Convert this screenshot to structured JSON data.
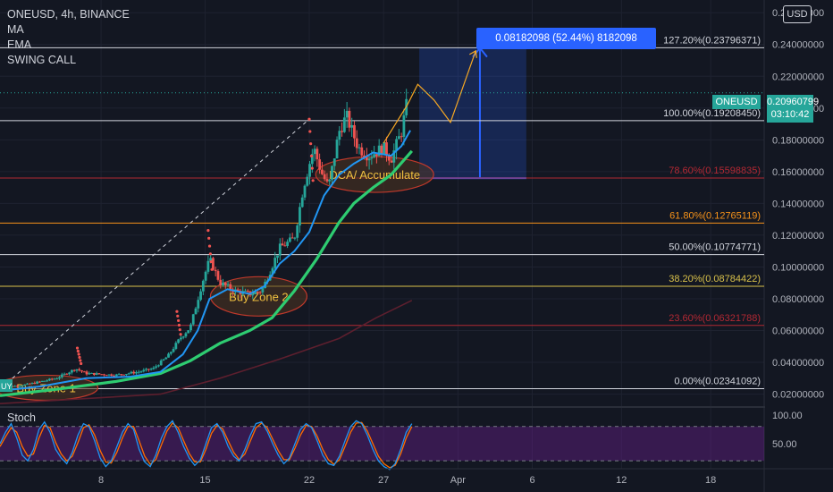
{
  "header": {
    "title": "ONEUSD, 4h, BINANCE",
    "indicators": [
      "MA",
      "EMA",
      "SWING CALL"
    ]
  },
  "currency_button": "USD",
  "current_price": {
    "symbol": "ONEUSD",
    "value": "0.20960799",
    "countdown": "03:10:42"
  },
  "measure_label": "0.08182098 (52.44%) 8182098",
  "stoch_title": "Stoch",
  "annotations": {
    "buy_zone_1": "Buy Zone 1",
    "buy_zone_2": "Buy Zone 2",
    "dca": "DCA/ Accumulate",
    "chart_badge": "UY"
  },
  "colors": {
    "background": "#131722",
    "up": "#26a69a",
    "down": "#ef5350",
    "ema": "#2196f3",
    "ma": "#2ecc71",
    "long_ma": "#5d1f2e",
    "fib_white": "#d1d4dc",
    "fib_red": "#b22833",
    "fib_orange": "#f7931a",
    "fib_yellow": "#d8c04a",
    "measure": "#2962ff",
    "zone_fill": "#3d2a1e",
    "zone_stroke": "#c0392b",
    "stoch_band": "#4a2c7a",
    "stoch_k": "#2196f3",
    "stoch_d": "#ff6d00"
  },
  "chart_data": {
    "type": "candlestick",
    "y_axis": {
      "ticks": [
        "0.26000000",
        "0.24000000",
        "0.22000000",
        "0.20000000",
        "0.18000000",
        "0.16000000",
        "0.14000000",
        "0.12000000",
        "0.10000000",
        "0.08000000",
        "0.06000000",
        "0.04000000",
        "0.02000000"
      ],
      "tick_values": [
        0.26,
        0.24,
        0.22,
        0.2,
        0.18,
        0.16,
        0.14,
        0.12,
        0.1,
        0.08,
        0.06,
        0.04,
        0.02
      ],
      "range": [
        0.013,
        0.268
      ]
    },
    "x_axis": {
      "ticks": [
        "8",
        "15",
        "22",
        "27",
        "Apr",
        "6",
        "12",
        "18"
      ],
      "tick_days": [
        8,
        15,
        22,
        27,
        32,
        37,
        43,
        49
      ],
      "range_days": [
        1.2,
        52.6
      ]
    },
    "fib_levels": [
      {
        "label": "127.20%(0.23796371)",
        "value": 0.23796371,
        "color": "fib_white"
      },
      {
        "label": "100.00%(0.19208450)",
        "value": 0.1920845,
        "color": "fib_white"
      },
      {
        "label": "78.60%(0.15598835)",
        "value": 0.15598835,
        "color": "fib_red"
      },
      {
        "label": "61.80%(0.12765119)",
        "value": 0.12765119,
        "color": "fib_orange"
      },
      {
        "label": "50.00%(0.10774771)",
        "value": 0.10774771,
        "color": "fib_white"
      },
      {
        "label": "38.20%(0.08784422)",
        "value": 0.08784422,
        "color": "fib_yellow"
      },
      {
        "label": "23.60%(0.06321788)",
        "value": 0.06321788,
        "color": "fib_red"
      },
      {
        "label": "0.00%(0.02341092)",
        "value": 0.02341092,
        "color": "fib_white"
      }
    ],
    "price_path": [
      [
        1.2,
        0.024
      ],
      [
        3,
        0.026
      ],
      [
        5,
        0.03
      ],
      [
        6.3,
        0.036
      ],
      [
        7,
        0.033
      ],
      [
        9,
        0.032
      ],
      [
        10.5,
        0.034
      ],
      [
        11.5,
        0.036
      ],
      [
        12.5,
        0.044
      ],
      [
        13.3,
        0.055
      ],
      [
        14,
        0.062
      ],
      [
        14.8,
        0.09
      ],
      [
        15.3,
        0.105
      ],
      [
        16,
        0.09
      ],
      [
        17,
        0.085
      ],
      [
        18,
        0.083
      ],
      [
        18.8,
        0.085
      ],
      [
        19.4,
        0.098
      ],
      [
        20,
        0.112
      ],
      [
        21,
        0.118
      ],
      [
        21.6,
        0.15
      ],
      [
        22.3,
        0.175
      ],
      [
        22.8,
        0.16
      ],
      [
        23.3,
        0.15
      ],
      [
        24,
        0.185
      ],
      [
        24.5,
        0.195
      ],
      [
        25.3,
        0.175
      ],
      [
        26,
        0.17
      ],
      [
        27,
        0.175
      ],
      [
        27.5,
        0.168
      ],
      [
        28.2,
        0.185
      ],
      [
        28.7,
        0.2096
      ]
    ],
    "spikes": [
      [
        6.4,
        0.049
      ],
      [
        13.1,
        0.072
      ],
      [
        15.2,
        0.123
      ],
      [
        22.0,
        0.193
      ]
    ],
    "ema": [
      [
        1.2,
        0.022
      ],
      [
        4,
        0.025
      ],
      [
        7,
        0.03
      ],
      [
        10,
        0.031
      ],
      [
        12,
        0.034
      ],
      [
        13.5,
        0.045
      ],
      [
        14.5,
        0.06
      ],
      [
        15.3,
        0.08
      ],
      [
        16.5,
        0.086
      ],
      [
        18,
        0.083
      ],
      [
        19,
        0.088
      ],
      [
        20,
        0.102
      ],
      [
        21,
        0.11
      ],
      [
        22,
        0.122
      ],
      [
        23,
        0.145
      ],
      [
        24,
        0.158
      ],
      [
        25,
        0.165
      ],
      [
        26.3,
        0.172
      ],
      [
        27.5,
        0.17
      ],
      [
        28.2,
        0.176
      ],
      [
        28.8,
        0.186
      ]
    ],
    "ma": [
      [
        1.2,
        0.019
      ],
      [
        5,
        0.023
      ],
      [
        9,
        0.028
      ],
      [
        12,
        0.033
      ],
      [
        14,
        0.041
      ],
      [
        16,
        0.052
      ],
      [
        18,
        0.06
      ],
      [
        19.5,
        0.068
      ],
      [
        21,
        0.085
      ],
      [
        22.5,
        0.105
      ],
      [
        24,
        0.128
      ],
      [
        25,
        0.14
      ],
      [
        26.3,
        0.15
      ],
      [
        27.5,
        0.158
      ],
      [
        28.9,
        0.173
      ]
    ],
    "long_ma": [
      [
        1.2,
        0.014
      ],
      [
        12,
        0.02
      ],
      [
        16,
        0.03
      ],
      [
        20,
        0.042
      ],
      [
        24,
        0.055
      ],
      [
        26.5,
        0.068
      ],
      [
        28.9,
        0.079
      ]
    ],
    "measure": {
      "start_day": 29.4,
      "end_day": 36.6,
      "low": 0.1559,
      "high": 0.2378
    },
    "projection_arrows": [
      [
        [
          27,
          0.178
        ],
        [
          28.6,
          0.202
        ],
        [
          29.3,
          0.215
        ],
        [
          30.4,
          0.205
        ],
        [
          31.5,
          0.191
        ],
        [
          33.2,
          0.236
        ]
      ]
    ],
    "stoch": {
      "y_ticks": [
        "100.00",
        "50.00"
      ],
      "tick_values": [
        100,
        50
      ],
      "band": [
        80,
        20
      ],
      "k": [
        50,
        70,
        85,
        60,
        30,
        20,
        40,
        75,
        88,
        70,
        40,
        25,
        15,
        35,
        65,
        85,
        80,
        55,
        25,
        10,
        20,
        45,
        70,
        85,
        75,
        40,
        18,
        10,
        30,
        60,
        80,
        90,
        70,
        45,
        25,
        12,
        22,
        50,
        78,
        85,
        70,
        45,
        28,
        20,
        40,
        65,
        85,
        88,
        72,
        50,
        30,
        15,
        25,
        50,
        75,
        85,
        78,
        55,
        30,
        15,
        12,
        28,
        55,
        80,
        90,
        85,
        65,
        40,
        20,
        10,
        5,
        15,
        40,
        70,
        85
      ],
      "d": [
        45,
        62,
        78,
        70,
        45,
        28,
        32,
        60,
        82,
        78,
        52,
        32,
        20,
        28,
        52,
        78,
        83,
        65,
        38,
        18,
        16,
        35,
        60,
        80,
        80,
        55,
        28,
        14,
        22,
        48,
        72,
        86,
        78,
        55,
        33,
        18,
        18,
        40,
        68,
        82,
        76,
        55,
        35,
        22,
        32,
        55,
        78,
        86,
        78,
        58,
        38,
        22,
        22,
        42,
        65,
        82,
        80,
        63,
        40,
        22,
        14,
        22,
        45,
        70,
        86,
        87,
        72,
        50,
        28,
        15,
        8,
        12,
        32,
        60,
        80
      ],
      "end_day": 28.9
    }
  }
}
